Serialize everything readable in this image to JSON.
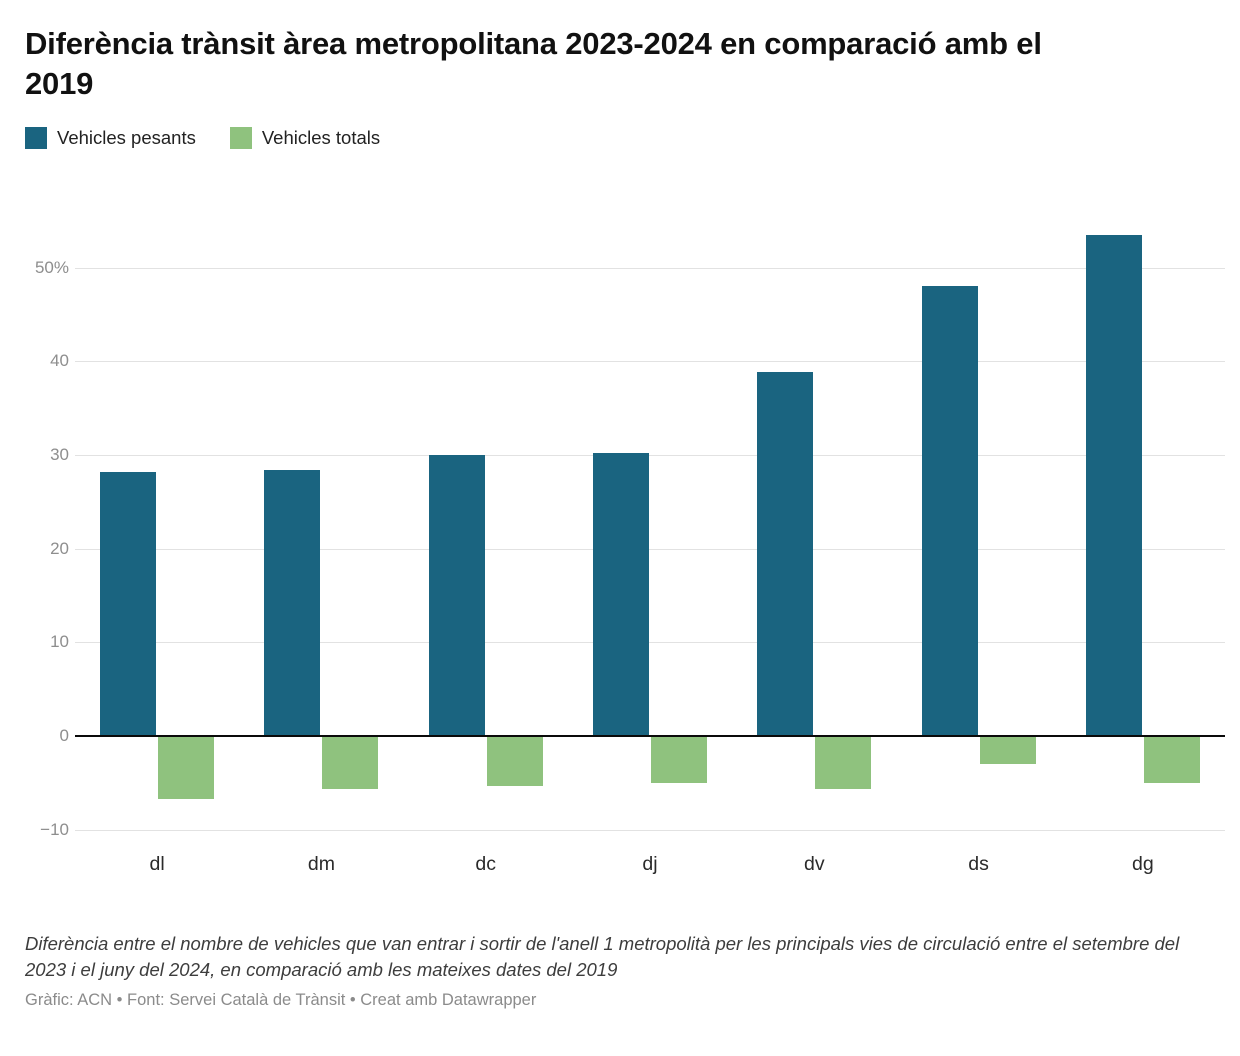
{
  "title": "Diferència trànsit àrea metropolitana 2023-2024 en comparació amb el 2019",
  "legend": {
    "items": [
      {
        "label": "Vehicles pesants",
        "color": "#1a6480"
      },
      {
        "label": "Vehicles totals",
        "color": "#8fc27e"
      }
    ]
  },
  "chart_data": {
    "type": "bar",
    "title": "Diferència trànsit àrea metropolitana 2023-2024 en comparació amb el 2019",
    "categories": [
      "dl",
      "dm",
      "dc",
      "dj",
      "dv",
      "ds",
      "dg"
    ],
    "series": [
      {
        "name": "Vehicles pesants",
        "color": "#1a6480",
        "values": [
          28.2,
          28.4,
          30.0,
          30.2,
          38.8,
          48.0,
          53.5
        ]
      },
      {
        "name": "Vehicles totals",
        "color": "#8fc27e",
        "values": [
          -6.7,
          -5.6,
          -5.3,
          -5.0,
          -5.6,
          -3.0,
          -5.0
        ]
      }
    ],
    "xlabel": "",
    "ylabel": "",
    "ylim": [
      -10,
      54
    ],
    "grid": true,
    "legend_position": "top",
    "yticks": [
      {
        "value": 50,
        "label": "50%"
      },
      {
        "value": 40,
        "label": "40"
      },
      {
        "value": 30,
        "label": "30"
      },
      {
        "value": 20,
        "label": "20"
      },
      {
        "value": 10,
        "label": "10"
      },
      {
        "value": 0,
        "label": "0"
      },
      {
        "value": -10,
        "label": "−10"
      }
    ]
  },
  "notes": "Diferència entre el nombre de vehicles que van entrar i sortir de l'anell 1 metropolità per les principals vies de circulació entre el setembre del 2023 i el juny del 2024, en comparació amb les mateixes dates del 2019",
  "credit": "Gràfic: ACN • Font: Servei Català de Trànsit • Creat amb Datawrapper"
}
